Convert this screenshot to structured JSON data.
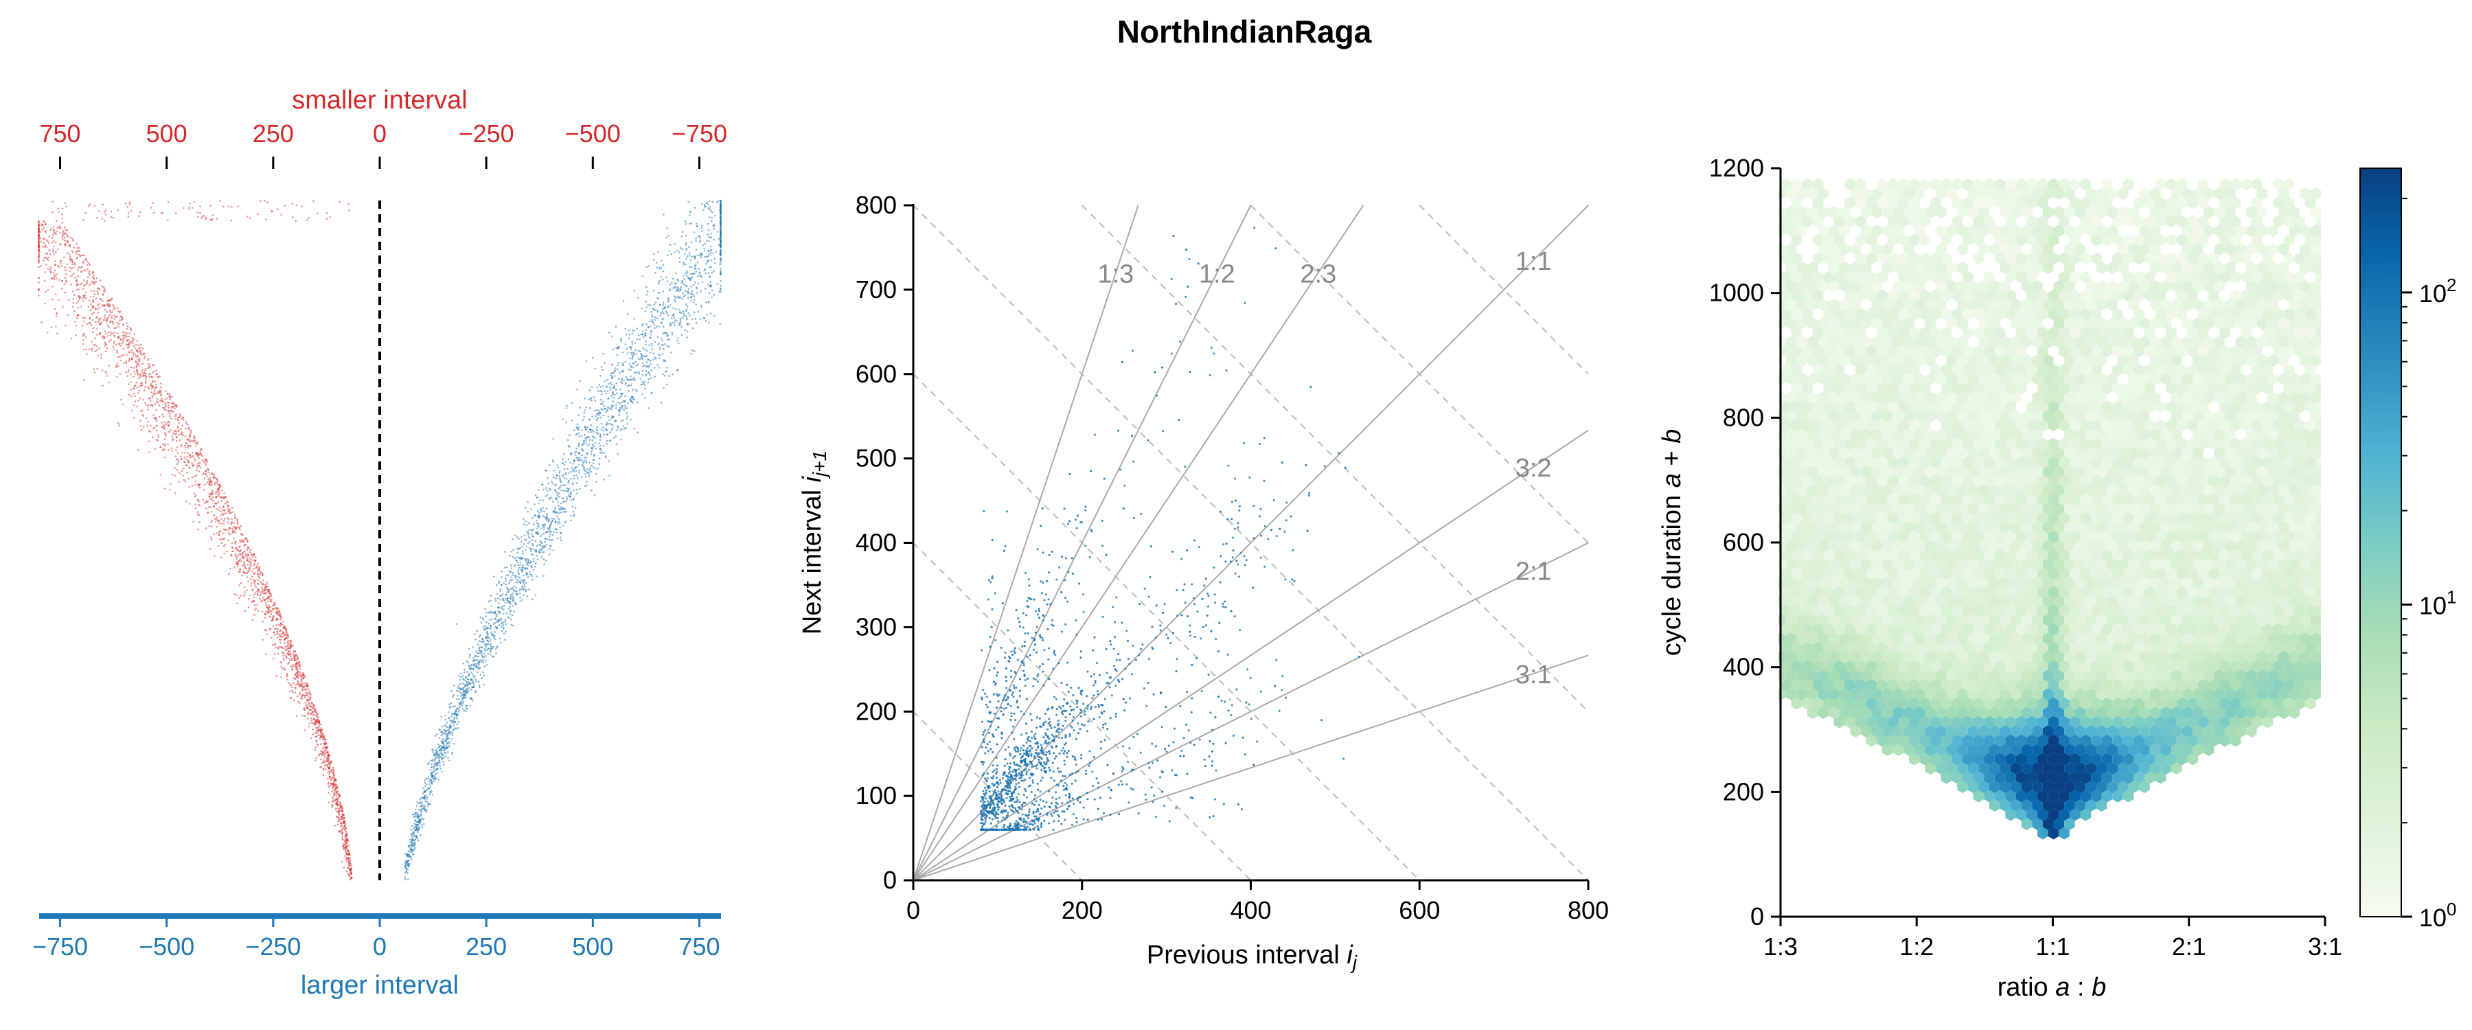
{
  "figure": {
    "title": "NorthIndianRaga"
  },
  "chart_data": [
    {
      "type": "scatter",
      "panel": "left",
      "top_axis_label": "smaller interval",
      "bottom_axis_label": "larger interval",
      "top_ticks": [
        "750",
        "500",
        "250",
        "0",
        "−250",
        "−500",
        "−750"
      ],
      "bottom_ticks": [
        "−750",
        "−500",
        "−250",
        "0",
        "250",
        "500",
        "750"
      ],
      "xlim": [
        -800,
        800
      ],
      "series": [
        {
          "color": "#d62728",
          "side": "smaller"
        },
        {
          "color": "#1f77b4",
          "side": "larger"
        }
      ],
      "center_line": "dashed",
      "colors": {
        "smaller": "#d62728",
        "larger": "#1f77b4"
      }
    },
    {
      "type": "scatter",
      "panel": "middle",
      "xlabel": "Previous interval i_j",
      "ylabel": "Next interval i_j+1",
      "xlim": [
        0,
        800
      ],
      "ylim": [
        0,
        800
      ],
      "x_ticks": [
        "0",
        "200",
        "400",
        "600",
        "800"
      ],
      "y_ticks": [
        "0",
        "100",
        "200",
        "300",
        "400",
        "500",
        "600",
        "700",
        "800"
      ],
      "ratio_lines": [
        {
          "label": "1:3",
          "a": 1,
          "b": 3
        },
        {
          "label": "1:2",
          "a": 1,
          "b": 2
        },
        {
          "label": "2:3",
          "a": 2,
          "b": 3
        },
        {
          "label": "1:1",
          "a": 1,
          "b": 1
        },
        {
          "label": "3:2",
          "a": 3,
          "b": 2
        },
        {
          "label": "2:1",
          "a": 2,
          "b": 1
        },
        {
          "label": "3:1",
          "a": 3,
          "b": 1
        }
      ],
      "point_color": "#1f77b4",
      "min_interval": 60
    },
    {
      "type": "heatmap",
      "panel": "right",
      "xlabel": "ratio a : b",
      "ylabel": "cycle duration a + b",
      "x_ticks": [
        "1:3",
        "1:2",
        "1:1",
        "2:1",
        "3:1"
      ],
      "y_ticks": [
        "0",
        "200",
        "400",
        "600",
        "800",
        "1000",
        "1200"
      ],
      "ylim": [
        0,
        1200
      ],
      "colorbar": {
        "scale": "log",
        "range": [
          1,
          250
        ],
        "ticks": [
          {
            "base": "10",
            "exp": "0"
          },
          {
            "base": "10",
            "exp": "1"
          },
          {
            "base": "10",
            "exp": "2"
          }
        ],
        "colormap": "GnBu"
      }
    }
  ]
}
